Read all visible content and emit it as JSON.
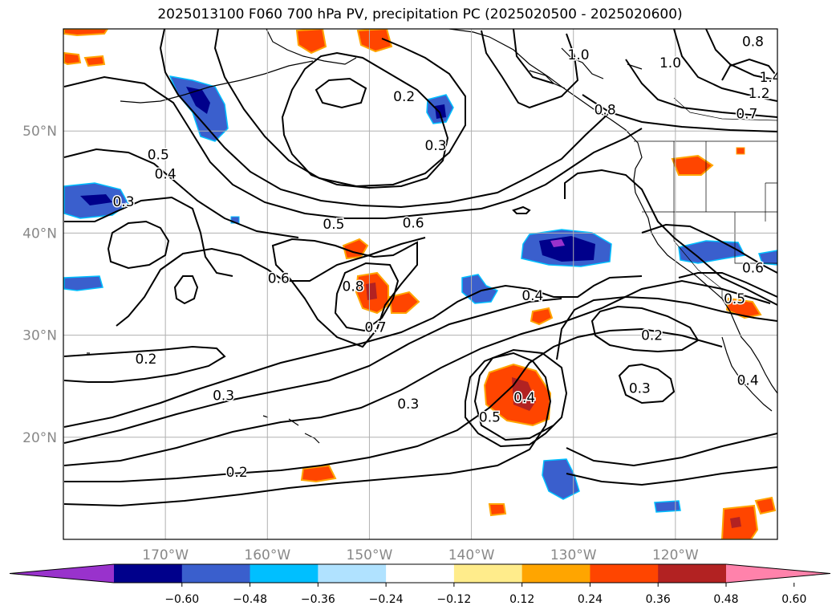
{
  "title": "2025013100 F060 700 hPa PV, precipitation PC (2025020500 - 2025020600)",
  "map": {
    "lon_range": [
      -180,
      -110
    ],
    "lat_range": [
      10,
      60
    ],
    "lon_ticks": [
      {
        "lon": -170,
        "label": "170°W"
      },
      {
        "lon": -160,
        "label": "160°W"
      },
      {
        "lon": -150,
        "label": "150°W"
      },
      {
        "lon": -140,
        "label": "140°W"
      },
      {
        "lon": -130,
        "label": "130°W"
      },
      {
        "lon": -120,
        "label": "120°W"
      }
    ],
    "lat_ticks": [
      {
        "lat": 20,
        "label": "20°N"
      },
      {
        "lat": 30,
        "label": "30°N"
      },
      {
        "lat": 40,
        "label": "40°N"
      },
      {
        "lat": 50,
        "label": "50°N"
      }
    ],
    "gridline_color": "#b0b0b0",
    "tick_label_color": "#888888"
  },
  "contour_labels": [
    {
      "text": "0.2",
      "lon": -146.6,
      "lat": 53.4
    },
    {
      "text": "0.3",
      "lon": -143.5,
      "lat": 48.6
    },
    {
      "text": "0.5",
      "lon": -170.7,
      "lat": 47.7
    },
    {
      "text": "0.4",
      "lon": -170.0,
      "lat": 45.8
    },
    {
      "text": "0.3",
      "lon": -174.1,
      "lat": 43.1
    },
    {
      "text": "0.5",
      "lon": -153.5,
      "lat": 40.9
    },
    {
      "text": "0.6",
      "lon": -145.7,
      "lat": 41.0
    },
    {
      "text": "0.6",
      "lon": -158.9,
      "lat": 35.6
    },
    {
      "text": "0.8",
      "lon": -151.6,
      "lat": 34.8
    },
    {
      "text": "0.7",
      "lon": -149.4,
      "lat": 30.8
    },
    {
      "text": "0.4",
      "lon": -134.0,
      "lat": 33.9
    },
    {
      "text": "0.2",
      "lon": -171.9,
      "lat": 27.7
    },
    {
      "text": "0.3",
      "lon": -164.3,
      "lat": 24.1
    },
    {
      "text": "0.3",
      "lon": -146.2,
      "lat": 23.3
    },
    {
      "text": "0.4",
      "lon": -134.8,
      "lat": 23.9
    },
    {
      "text": "0.5",
      "lon": -138.2,
      "lat": 22.0
    },
    {
      "text": "0.2",
      "lon": -163.0,
      "lat": 16.6
    },
    {
      "text": "0.2",
      "lon": -122.3,
      "lat": 30.0
    },
    {
      "text": "0.3",
      "lon": -123.5,
      "lat": 24.8
    },
    {
      "text": "0.8",
      "lon": -112.4,
      "lat": 58.8
    },
    {
      "text": "1.0",
      "lon": -120.5,
      "lat": 56.7
    },
    {
      "text": "1.4",
      "lon": -110.7,
      "lat": 55.3
    },
    {
      "text": "1.2",
      "lon": -111.8,
      "lat": 53.7
    },
    {
      "text": "0.7",
      "lon": -113.0,
      "lat": 51.7
    },
    {
      "text": "0.8",
      "lon": -126.9,
      "lat": 52.1
    },
    {
      "text": "1.0",
      "lon": -129.5,
      "lat": 57.5
    },
    {
      "text": "0.6",
      "lon": -112.4,
      "lat": 36.6
    },
    {
      "text": "0.5",
      "lon": -114.2,
      "lat": 33.6
    },
    {
      "text": "0.4",
      "lon": -112.9,
      "lat": 25.6
    }
  ],
  "colorbar": {
    "ticks": [
      "−0.60",
      "−0.48",
      "−0.36",
      "−0.24",
      "−0.12",
      "0.12",
      "0.24",
      "0.36",
      "0.48",
      "0.60"
    ],
    "colors": [
      "#9932cc",
      "#00008b",
      "#3a5fcd",
      "#00bfff",
      "#b0e2ff",
      "#ffffff",
      "#ffec8b",
      "#ffa500",
      "#ff4500",
      "#b22222",
      "#ff82ab"
    ]
  }
}
